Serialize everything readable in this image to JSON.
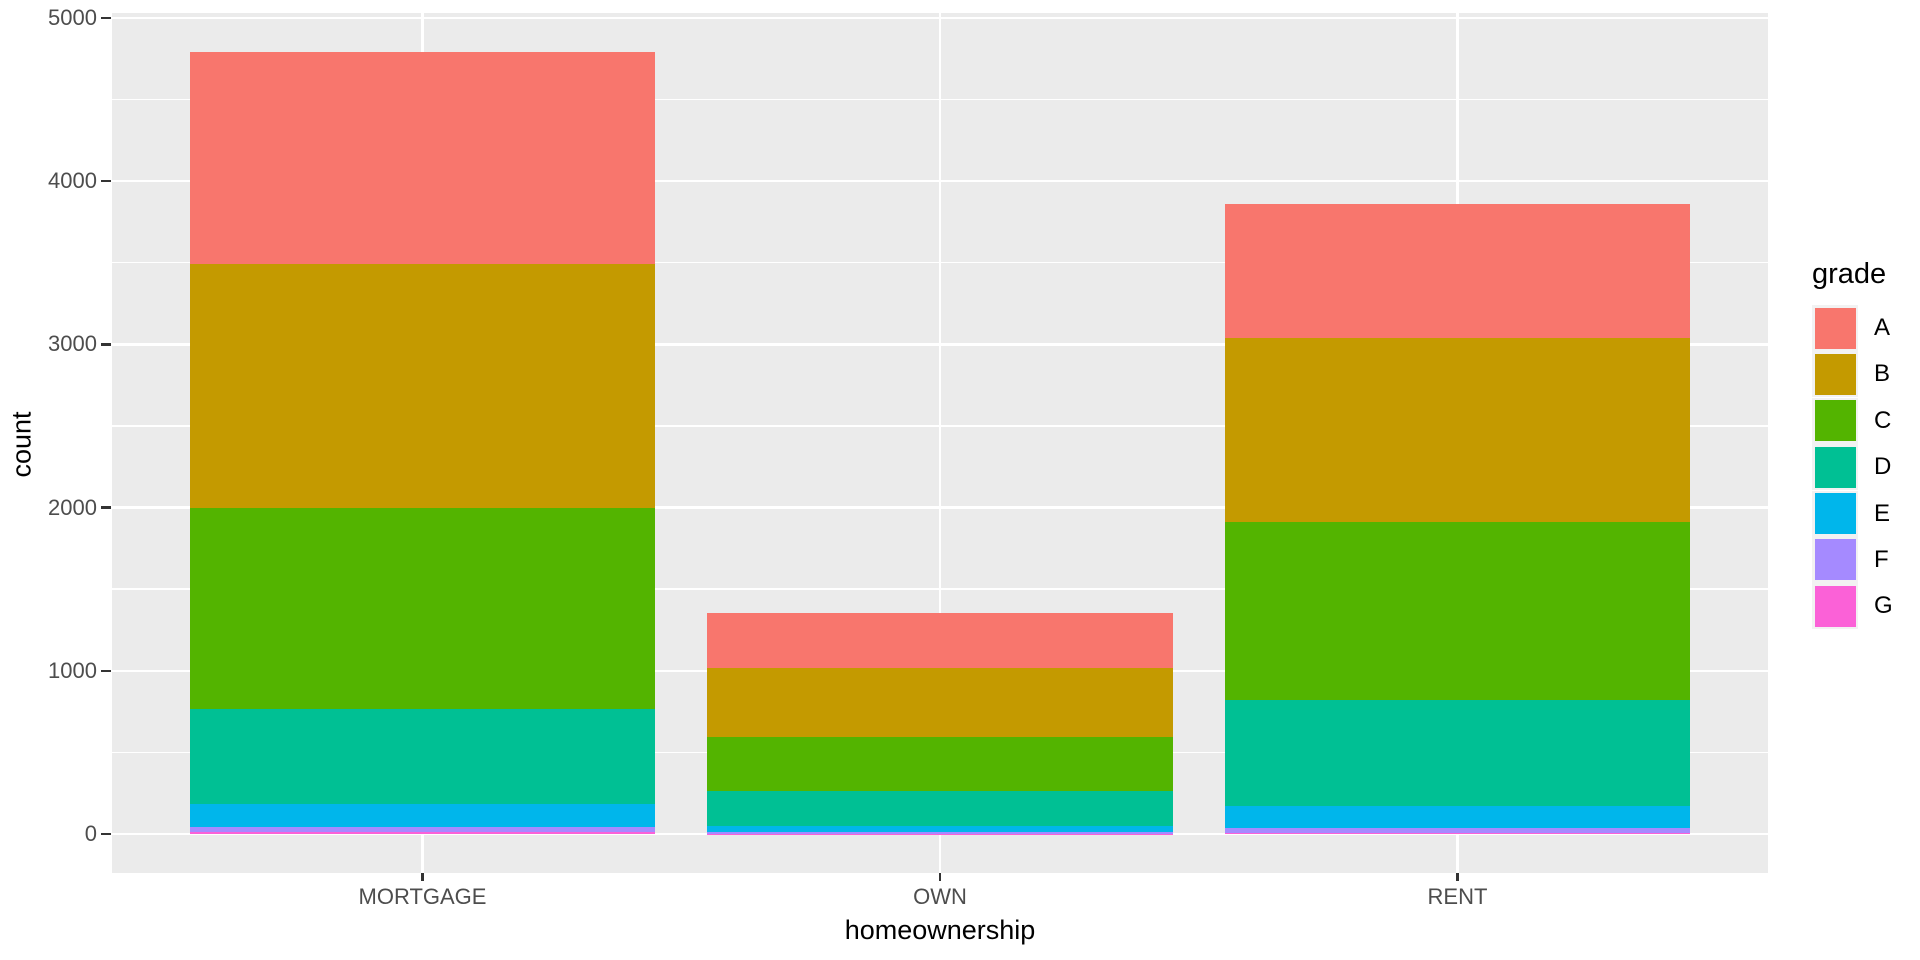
{
  "chart_data": {
    "type": "bar",
    "stacked": true,
    "title": "",
    "xlabel": "homeownership",
    "ylabel": "count",
    "legend_title": "grade",
    "legend_position": "right",
    "categories": [
      "MORTGAGE",
      "OWN",
      "RENT"
    ],
    "series": [
      {
        "name": "A",
        "color": "#F8766D",
        "values": [
          1299,
          338,
          822
        ]
      },
      {
        "name": "B",
        "color": "#C49A00",
        "values": [
          1494,
          420,
          1123
        ]
      },
      {
        "name": "C",
        "color": "#53B400",
        "values": [
          1229,
          331,
          1093
        ]
      },
      {
        "name": "D",
        "color": "#00C094",
        "values": [
          581,
          215,
          650
        ]
      },
      {
        "name": "E",
        "color": "#00B6EB",
        "values": [
          144,
          38,
          136
        ]
      },
      {
        "name": "F",
        "color": "#A58AFF",
        "values": [
          33,
          9,
          29
        ]
      },
      {
        "name": "G",
        "color": "#FB61D7",
        "values": [
          9,
          2,
          5
        ]
      }
    ],
    "stack_order_bottom_to_top": [
      "G",
      "F",
      "E",
      "D",
      "C",
      "B",
      "A"
    ],
    "bar_totals": [
      4789,
      1353,
      3858
    ],
    "ylim": [
      0,
      5000
    ],
    "y_major_ticks": [
      0,
      1000,
      2000,
      3000,
      4000,
      5000
    ],
    "y_tick_labels": [
      "0",
      "1000",
      "2000",
      "3000",
      "4000",
      "5000"
    ],
    "y_minor_ticks": [
      500,
      1500,
      2500,
      3500,
      4500
    ],
    "grid": true,
    "panel_background": "#EBEBEB",
    "gridline_color": "#FFFFFF",
    "axis_text_color": "#4D4D4D",
    "axis_title_color": "#000000"
  }
}
